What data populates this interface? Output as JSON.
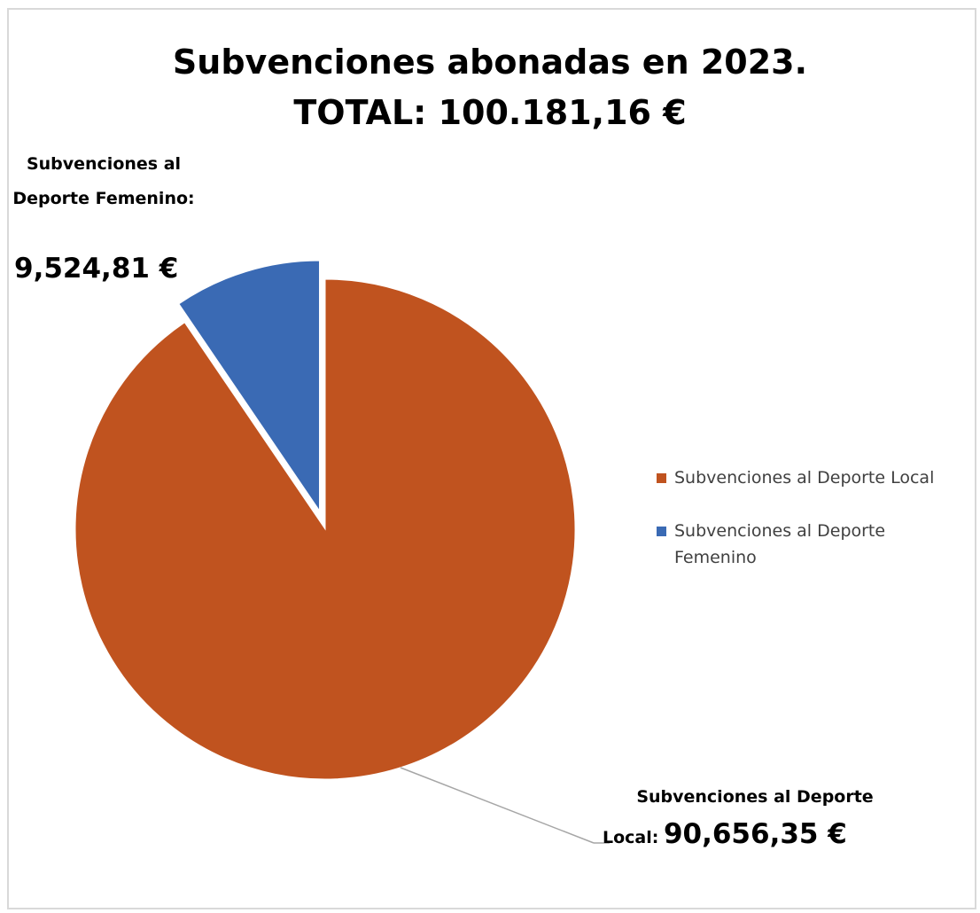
{
  "chart_data": {
    "type": "pie",
    "title": "Subvenciones abonadas en 2023.",
    "subtitle": "TOTAL: 100.181,16 €",
    "slices": [
      {
        "name": "Subvenciones al Deporte Local",
        "value": 90656.35,
        "color": "#C0531F",
        "label_name": "Subvenciones al Deporte",
        "label_prefix": "Local:",
        "label_value": "90,656,35 €",
        "exploded": false
      },
      {
        "name": "Subvenciones al Deporte Femenino",
        "value": 9524.81,
        "color": "#3A6AB4",
        "label_name": "Subvenciones al Deporte Femenino:",
        "label_value": "9,524,81 €",
        "exploded": true
      }
    ],
    "legend_position": "right",
    "legend": [
      {
        "label": "Subvenciones al Deporte Local",
        "color": "#C0531F"
      },
      {
        "label": "Subvenciones al Deporte Femenino",
        "color": "#3A6AB4"
      }
    ]
  }
}
